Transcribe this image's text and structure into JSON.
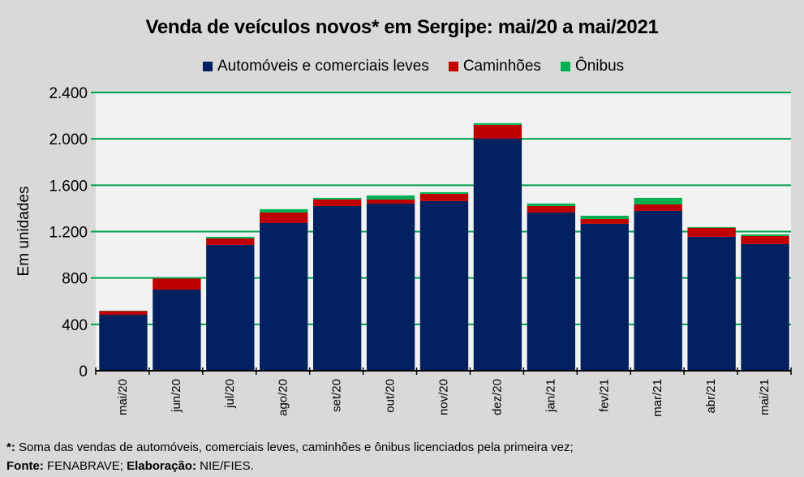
{
  "chart_data": {
    "type": "bar",
    "stacked": true,
    "title": "Venda de veículos novos* em Sergipe: mai/20 a mai/2021",
    "xlabel": "",
    "ylabel": "Em unidades",
    "ylim": [
      0,
      2400
    ],
    "yticks": [
      0,
      400,
      800,
      1200,
      1600,
      2000,
      2400
    ],
    "ytick_labels": [
      "0",
      "400",
      "800",
      "1.200",
      "1.600",
      "2.000",
      "2.400"
    ],
    "grid": true,
    "legend_position": "top",
    "categories": [
      "mai/20",
      "jun/20",
      "jul/20",
      "ago/20",
      "set/20",
      "out/20",
      "nov/20",
      "dez/20",
      "jan/21",
      "fev/21",
      "mar/21",
      "abr/21",
      "mai/21"
    ],
    "series": [
      {
        "name": "Automóveis e comerciais leves",
        "color": "#002060",
        "values": [
          483,
          700,
          1085,
          1274,
          1421,
          1442,
          1463,
          2002,
          1365,
          1267,
          1379,
          1155,
          1092
        ]
      },
      {
        "name": "Caminhões",
        "color": "#c00000",
        "values": [
          32,
          95,
          56,
          91,
          56,
          35,
          63,
          119,
          56,
          42,
          56,
          77,
          70
        ]
      },
      {
        "name": "Ônibus",
        "color": "#00b050",
        "values": [
          3,
          5,
          14,
          28,
          14,
          35,
          14,
          14,
          21,
          28,
          56,
          7,
          14
        ]
      }
    ]
  },
  "footer": {
    "note_marker": "*:",
    "note_text": " Soma das vendas de automóveis, comerciais leves, caminhões e ônibus licenciados pela primeira vez;",
    "source_label": "Fonte:",
    "source_text": " FENABRAVE; ",
    "elab_label": "Elaboração:",
    "elab_text": " NIE/FIES."
  },
  "colors": {
    "background": "#d9d9d9",
    "plot_background": "#f2f2f2",
    "gridline": "#00a050"
  }
}
